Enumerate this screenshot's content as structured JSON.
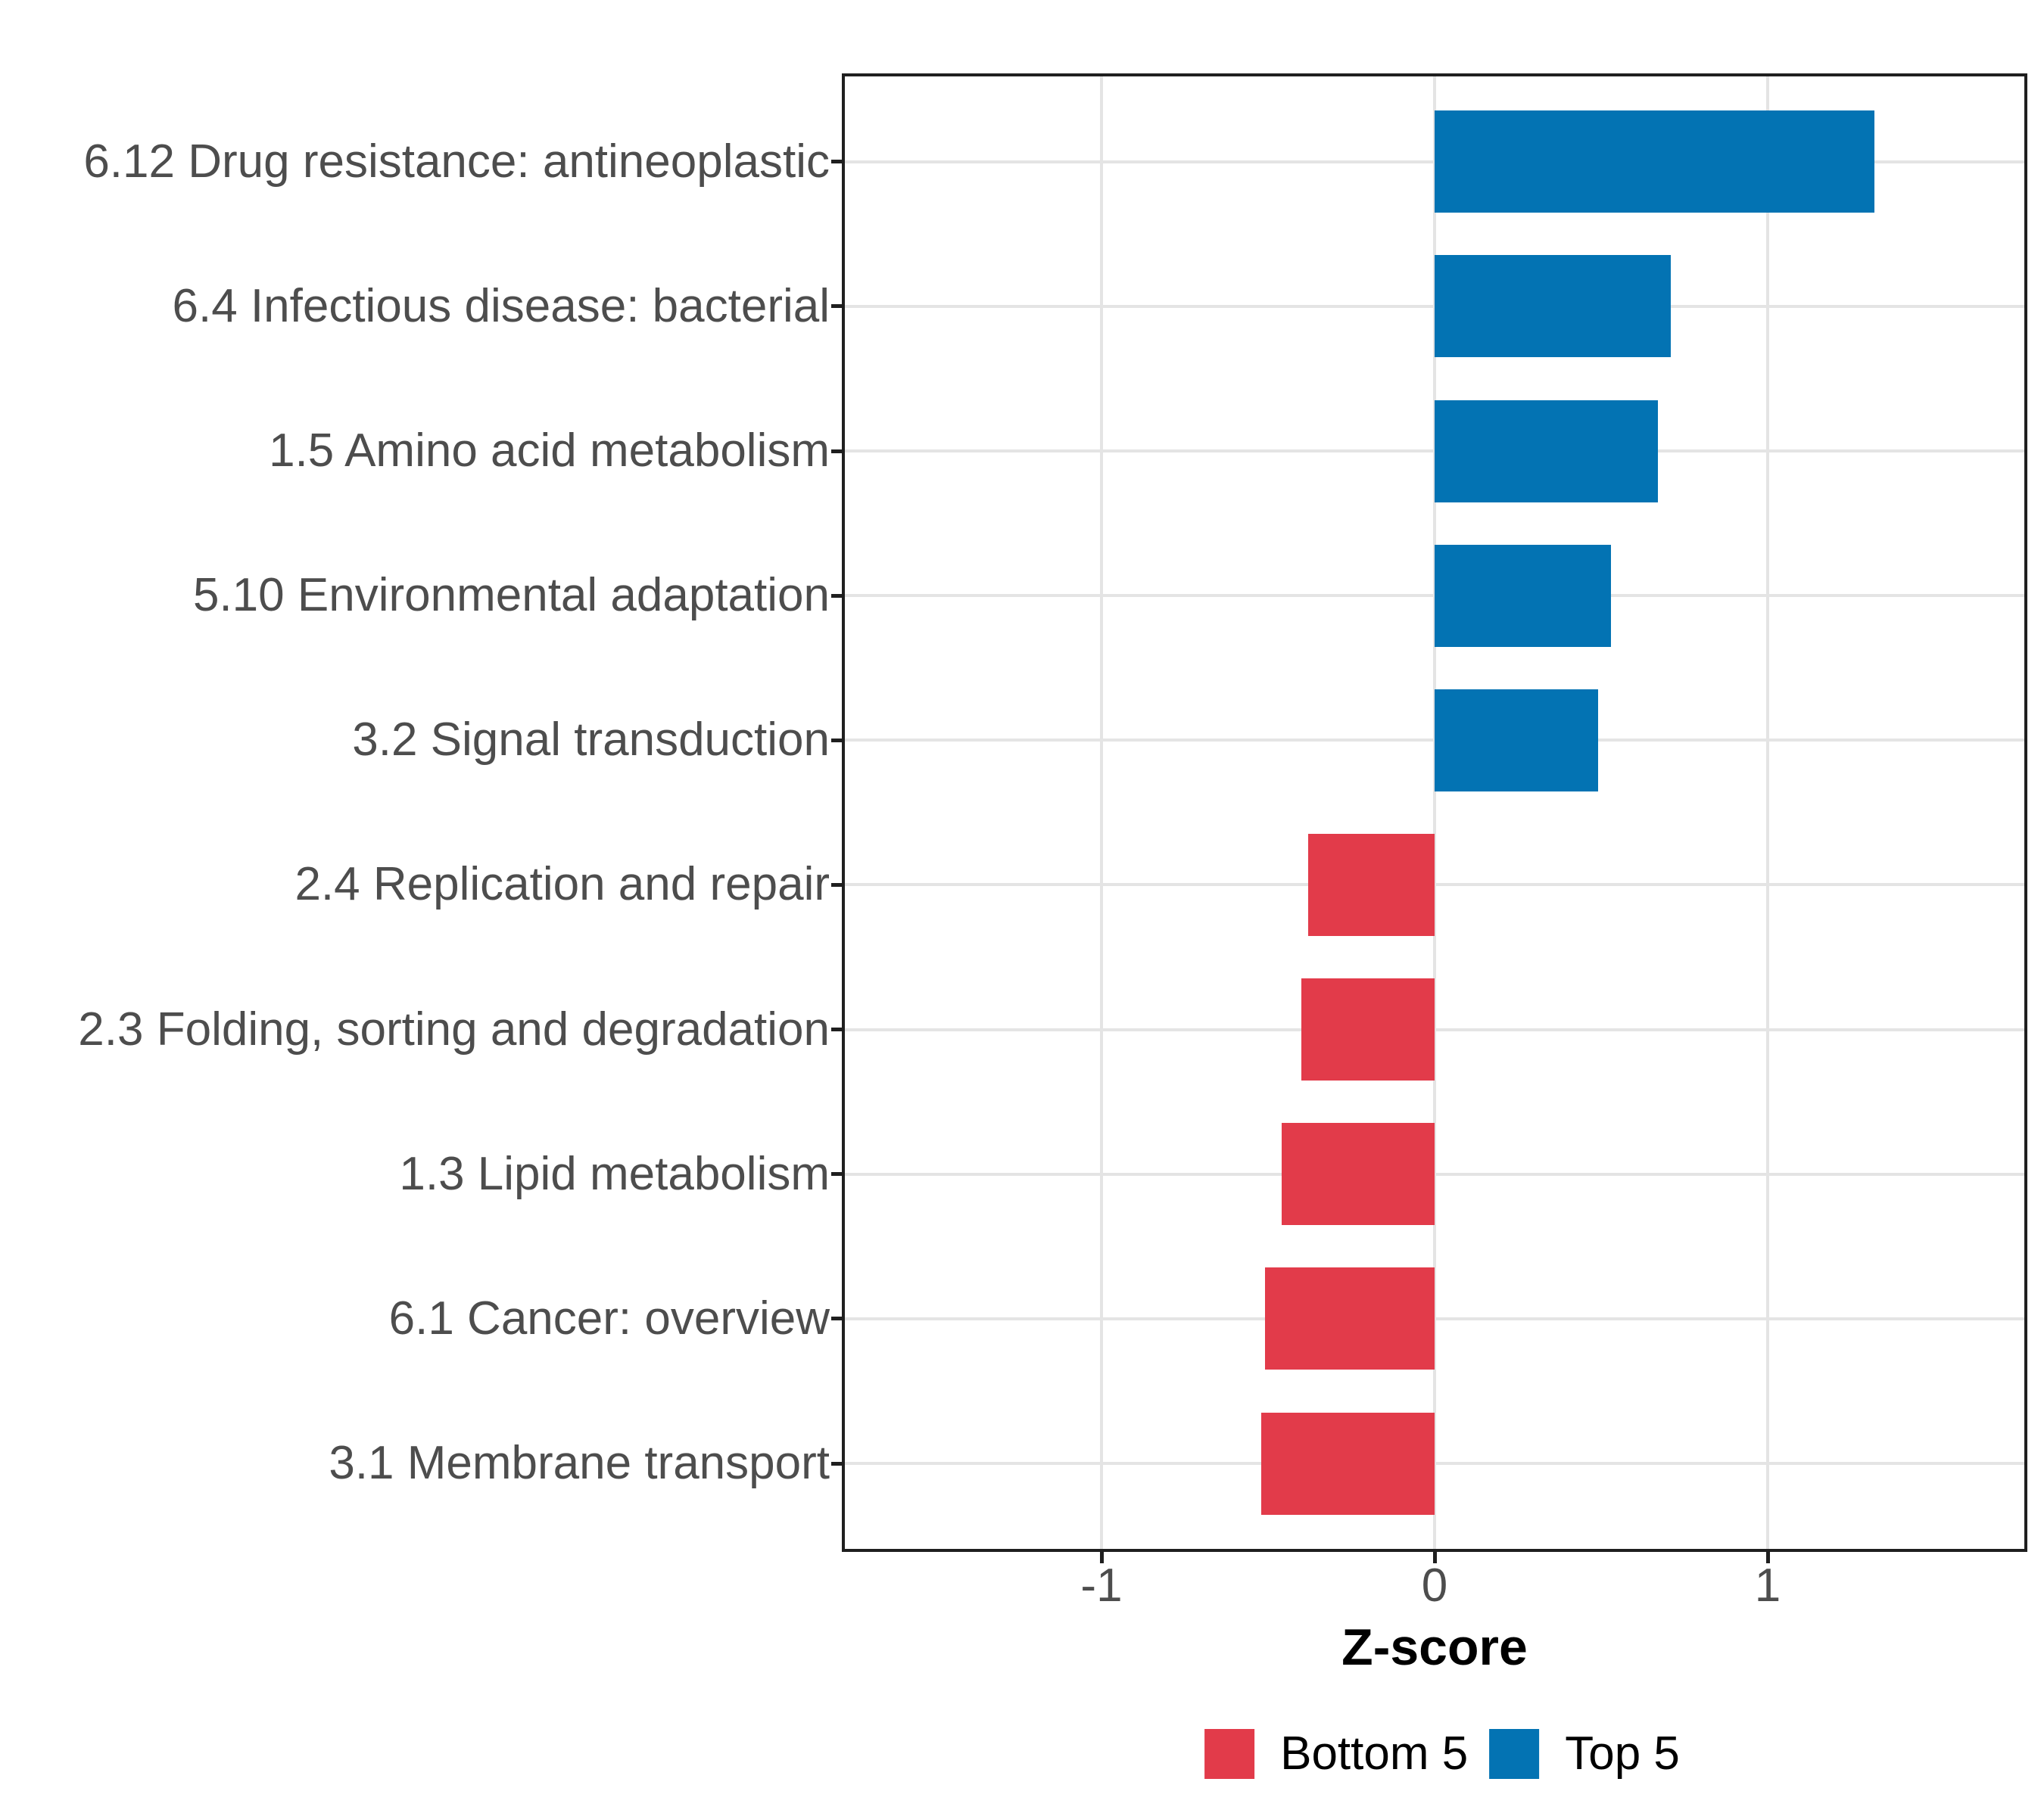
{
  "chart_data": {
    "type": "bar",
    "orientation": "horizontal",
    "xlabel": "Z-score",
    "ylabel": "",
    "xlim": [
      -1.775,
      1.775
    ],
    "x_ticks": [
      -1,
      0,
      1
    ],
    "x_tick_labels": [
      "-1",
      "0",
      "1"
    ],
    "grid": true,
    "bar_width_fraction": 0.7,
    "categories_top_to_bottom": [
      "6.12 Drug resistance: antineoplastic",
      "6.4 Infectious disease: bacterial",
      "1.5 Amino acid metabolism",
      "5.10 Environmental adaptation",
      "3.2 Signal transduction",
      "2.4 Replication and repair",
      "2.3 Folding, sorting and degradation",
      "1.3 Lipid metabolism",
      "6.1 Cancer: overview",
      "3.1 Membrane transport"
    ],
    "values_top_to_bottom": [
      1.32,
      0.71,
      0.67,
      0.53,
      0.49,
      -0.38,
      -0.4,
      -0.46,
      -0.51,
      -0.52
    ],
    "groups_top_to_bottom": [
      "Top 5",
      "Top 5",
      "Top 5",
      "Top 5",
      "Top 5",
      "Bottom 5",
      "Bottom 5",
      "Bottom 5",
      "Bottom 5",
      "Bottom 5"
    ],
    "legend": {
      "position": "bottom",
      "entries": [
        {
          "label": "Bottom 5",
          "color": "#e23b4a"
        },
        {
          "label": "Top 5",
          "color": "#0373b3"
        }
      ]
    },
    "colors": {
      "top5_bar": "#0373b3",
      "bottom5_bar": "#e23b4a",
      "axis_text": "#4d4d4d",
      "axis_title": "#000000",
      "gridline": "#e4e4e4",
      "panel_border": "#1f1f1f",
      "background": "#ffffff"
    }
  }
}
